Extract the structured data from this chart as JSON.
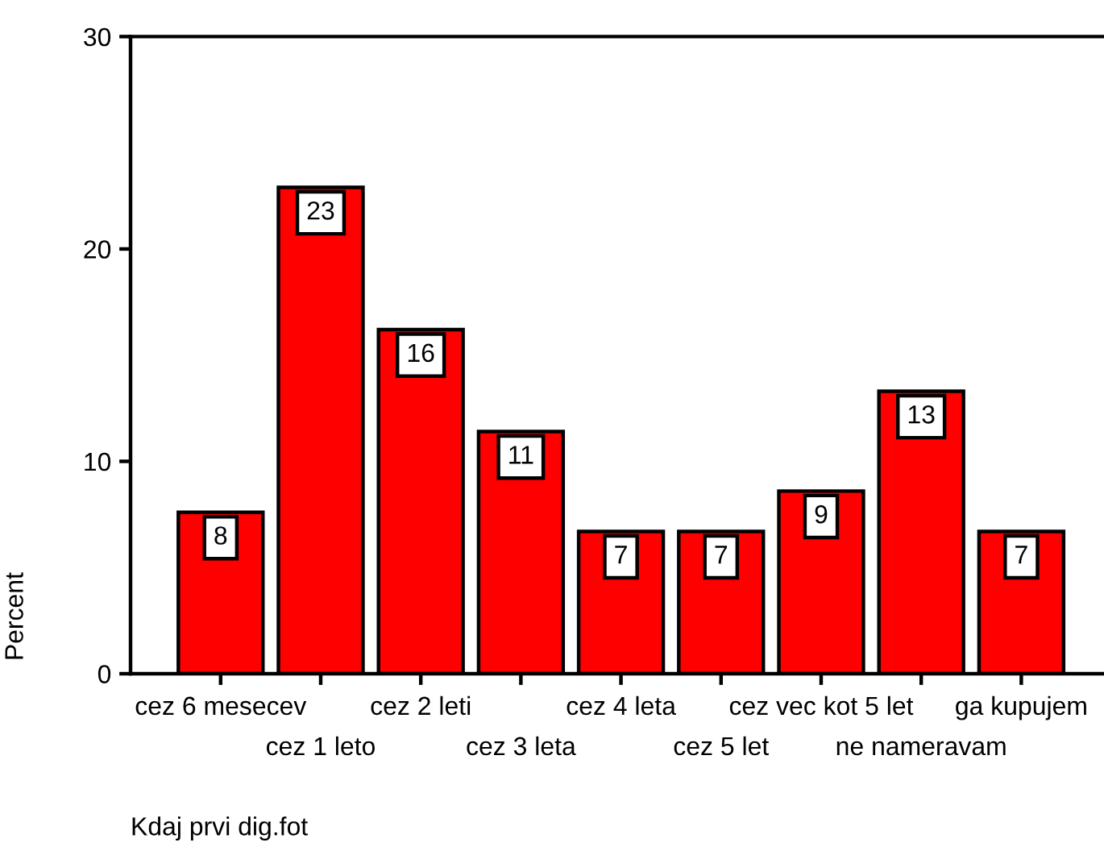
{
  "chart_data": {
    "type": "bar",
    "xlabel": "Kdaj prvi dig.fot",
    "ylabel": "Percent",
    "categories": [
      "cez 6 mesecev",
      "cez 1 leto",
      "cez 2 leti",
      "cez 3 leta",
      "cez 4 leta",
      "cez 5 let",
      "cez vec kot 5 let",
      "ne nameravam",
      "ga kupujem"
    ],
    "values": [
      7.6,
      22.9,
      16.2,
      11.4,
      6.7,
      6.7,
      8.6,
      13.3,
      6.7
    ],
    "value_labels": [
      "8",
      "23",
      "16",
      "11",
      "7",
      "7",
      "9",
      "13",
      "7"
    ],
    "color": "#ff0000",
    "ylim": [
      0,
      30
    ],
    "yticks": [
      0,
      10,
      20,
      30
    ],
    "grid": false
  }
}
